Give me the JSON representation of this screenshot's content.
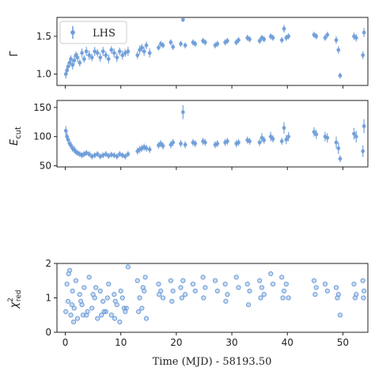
{
  "chart_data": [
    {
      "type": "scatter",
      "panel": "gamma",
      "ylabel_main": "Γ",
      "ylabel_sub": "",
      "yticks": [
        1.0,
        1.5
      ],
      "ylim": [
        0.85,
        1.75
      ],
      "xlim": [
        -1.5,
        54.5
      ],
      "legend": {
        "position": "top-left",
        "label": "LHS"
      },
      "errorbars": true,
      "color": "#6b9bd8",
      "values_note": "",
      "x": [
        0.1,
        0.3,
        0.5,
        0.8,
        1.0,
        1.3,
        1.6,
        1.9,
        2.2,
        2.6,
        3.0,
        3.4,
        3.8,
        4.3,
        4.8,
        5.3,
        5.8,
        6.3,
        6.8,
        7.3,
        7.8,
        8.3,
        8.8,
        9.3,
        9.8,
        10.3,
        10.8,
        11.3,
        13.0,
        13.4,
        13.8,
        14.2,
        14.6,
        15.2,
        16.8,
        17.2,
        17.6,
        19.0,
        19.4,
        20.8,
        21.2,
        21.6,
        23.0,
        23.4,
        24.8,
        25.2,
        27.0,
        27.4,
        28.8,
        29.2,
        30.8,
        31.2,
        32.8,
        33.2,
        35.0,
        35.4,
        35.8,
        37.0,
        37.4,
        39.0,
        39.4,
        39.8,
        40.2,
        44.8,
        45.2,
        46.8,
        47.2,
        48.8,
        49.2,
        49.5,
        52.0,
        52.4,
        53.6,
        53.8
      ],
      "y": [
        1.0,
        1.05,
        1.1,
        1.15,
        1.2,
        1.12,
        1.18,
        1.25,
        1.22,
        1.15,
        1.28,
        1.2,
        1.3,
        1.25,
        1.22,
        1.3,
        1.28,
        1.22,
        1.3,
        1.25,
        1.2,
        1.32,
        1.28,
        1.22,
        1.3,
        1.25,
        1.28,
        1.3,
        1.25,
        1.32,
        1.35,
        1.3,
        1.38,
        1.28,
        1.35,
        1.4,
        1.38,
        1.42,
        1.36,
        1.4,
        1.72,
        1.38,
        1.42,
        1.4,
        1.44,
        1.42,
        1.38,
        1.4,
        1.42,
        1.44,
        1.42,
        1.45,
        1.48,
        1.46,
        1.44,
        1.48,
        1.46,
        1.5,
        1.48,
        1.45,
        1.6,
        1.48,
        1.5,
        1.52,
        1.5,
        1.48,
        1.52,
        1.45,
        1.32,
        0.98,
        1.5,
        1.48,
        1.25,
        1.55
      ],
      "err": [
        0.06,
        0.05,
        0.06,
        0.06,
        0.05,
        0.06,
        0.06,
        0.05,
        0.06,
        0.05,
        0.06,
        0.05,
        0.06,
        0.06,
        0.05,
        0.06,
        0.05,
        0.06,
        0.06,
        0.05,
        0.06,
        0.05,
        0.06,
        0.06,
        0.05,
        0.06,
        0.05,
        0.06,
        0.05,
        0.06,
        0.05,
        0.06,
        0.05,
        0.06,
        0.04,
        0.04,
        0.04,
        0.04,
        0.04,
        0.04,
        0.03,
        0.04,
        0.04,
        0.04,
        0.04,
        0.04,
        0.04,
        0.04,
        0.04,
        0.04,
        0.04,
        0.04,
        0.04,
        0.04,
        0.04,
        0.04,
        0.04,
        0.04,
        0.04,
        0.04,
        0.05,
        0.04,
        0.04,
        0.04,
        0.04,
        0.04,
        0.04,
        0.05,
        0.05,
        0.04,
        0.05,
        0.05,
        0.05,
        0.06
      ]
    },
    {
      "type": "scatter",
      "panel": "ecut",
      "ylabel_main": "E",
      "ylabel_sub": "cut",
      "yticks": [
        50,
        100,
        150
      ],
      "ylim": [
        48,
        162
      ],
      "xlim": [
        -1.5,
        54.5
      ],
      "errorbars": true,
      "color": "#6b9bd8",
      "x": [
        0.1,
        0.3,
        0.5,
        0.8,
        1.0,
        1.3,
        1.6,
        1.9,
        2.2,
        2.6,
        3.0,
        3.4,
        3.8,
        4.3,
        4.8,
        5.3,
        5.8,
        6.3,
        6.8,
        7.3,
        7.8,
        8.3,
        8.8,
        9.3,
        9.8,
        10.3,
        10.8,
        11.3,
        13.0,
        13.4,
        13.8,
        14.2,
        14.6,
        15.2,
        16.8,
        17.2,
        17.6,
        19.0,
        19.4,
        20.8,
        21.2,
        21.6,
        23.0,
        23.4,
        24.8,
        25.2,
        27.0,
        27.4,
        28.8,
        29.2,
        30.8,
        31.2,
        32.8,
        33.2,
        35.0,
        35.4,
        35.8,
        37.0,
        37.4,
        39.0,
        39.4,
        39.8,
        40.2,
        44.8,
        45.2,
        46.8,
        47.2,
        48.8,
        49.2,
        49.5,
        52.0,
        52.4,
        53.6,
        53.8
      ],
      "y": [
        110,
        100,
        95,
        88,
        85,
        80,
        78,
        74,
        72,
        70,
        68,
        70,
        72,
        70,
        66,
        68,
        70,
        66,
        68,
        70,
        67,
        69,
        68,
        66,
        70,
        68,
        66,
        70,
        75,
        78,
        80,
        82,
        80,
        78,
        85,
        88,
        84,
        86,
        90,
        88,
        142,
        86,
        90,
        88,
        92,
        90,
        86,
        88,
        90,
        92,
        88,
        90,
        94,
        92,
        90,
        98,
        94,
        100,
        96,
        92,
        115,
        95,
        100,
        108,
        104,
        100,
        98,
        90,
        80,
        62,
        105,
        100,
        75,
        118
      ],
      "err": [
        8,
        7,
        7,
        6,
        6,
        6,
        6,
        5,
        5,
        5,
        5,
        5,
        5,
        5,
        5,
        5,
        5,
        5,
        5,
        5,
        5,
        5,
        5,
        5,
        5,
        5,
        5,
        5,
        6,
        6,
        6,
        6,
        6,
        6,
        6,
        6,
        6,
        6,
        6,
        6,
        12,
        6,
        6,
        6,
        6,
        6,
        6,
        6,
        6,
        6,
        6,
        6,
        6,
        6,
        6,
        8,
        6,
        8,
        6,
        6,
        10,
        8,
        8,
        8,
        8,
        8,
        8,
        10,
        10,
        6,
        10,
        10,
        10,
        12
      ]
    },
    {
      "type": "scatter",
      "panel": "chi2",
      "ylabel_main": "χ",
      "ylabel_sup": "2",
      "ylabel_sub": "red",
      "yticks": [
        0,
        1,
        2
      ],
      "ylim": [
        0,
        2
      ],
      "xlim": [
        -1.5,
        54.5
      ],
      "xticks": [
        0,
        10,
        20,
        30,
        40,
        50
      ],
      "xlabel": "Time (MJD) - 58193.50",
      "errorbars": false,
      "color": "#6b9bd8",
      "x": [
        0.1,
        0.3,
        0.5,
        0.8,
        1.0,
        1.3,
        1.6,
        1.9,
        2.2,
        2.6,
        3.0,
        3.4,
        3.8,
        4.3,
        4.8,
        5.3,
        5.8,
        6.3,
        6.8,
        7.3,
        7.8,
        8.3,
        8.8,
        9.3,
        9.8,
        10.3,
        10.8,
        11.3,
        0.6,
        1.5,
        2.8,
        4.0,
        5.5,
        6.5,
        7.6,
        8.9,
        10.0,
        11.0,
        1.2,
        3.2,
        5.0,
        7.0,
        9.0,
        10.6,
        13.0,
        13.4,
        13.8,
        14.2,
        14.6,
        13.2,
        14.0,
        14.4,
        16.8,
        17.2,
        17.6,
        19.0,
        19.4,
        20.8,
        21.2,
        21.6,
        23.0,
        23.4,
        24.8,
        25.2,
        27.0,
        27.4,
        28.8,
        29.2,
        30.8,
        31.2,
        32.8,
        33.2,
        35.0,
        35.4,
        35.8,
        37.0,
        37.4,
        39.0,
        39.4,
        39.8,
        40.2,
        44.8,
        45.2,
        46.8,
        47.2,
        48.8,
        49.2,
        49.5,
        52.0,
        52.4,
        53.6,
        53.8,
        16.9,
        19.2,
        21.0,
        24.9,
        28.9,
        33.0,
        35.2,
        39.2,
        45.0,
        49.0,
        52.2,
        53.7
      ],
      "y": [
        0.6,
        1.4,
        0.9,
        1.8,
        0.5,
        1.2,
        0.7,
        1.5,
        0.4,
        1.1,
        0.8,
        1.3,
        0.5,
        1.6,
        0.7,
        1.0,
        0.4,
        1.2,
        0.9,
        0.6,
        1.4,
        0.5,
        1.1,
        0.8,
        0.3,
        1.0,
        0.6,
        1.9,
        1.7,
        0.3,
        0.9,
        0.6,
        1.3,
        0.5,
        1.0,
        0.4,
        1.2,
        0.7,
        0.8,
        0.5,
        1.1,
        0.6,
        0.9,
        0.7,
        1.5,
        1.0,
        0.7,
        1.2,
        0.4,
        0.6,
        1.3,
        1.6,
        1.4,
        1.2,
        1.0,
        1.5,
        1.2,
        1.3,
        1.5,
        1.1,
        1.4,
        1.2,
        1.6,
        1.3,
        1.5,
        1.2,
        1.4,
        1.1,
        1.6,
        1.3,
        1.4,
        1.2,
        1.5,
        1.3,
        1.1,
        1.7,
        1.4,
        1.6,
        1.2,
        1.4,
        1.0,
        1.5,
        1.3,
        1.4,
        1.2,
        1.3,
        1.1,
        0.5,
        1.4,
        1.1,
        1.5,
        1.2,
        1.1,
        0.9,
        1.0,
        1.0,
        0.9,
        0.8,
        1.0,
        1.0,
        1.1,
        1.0,
        1.0,
        1.0
      ],
      "err": []
    }
  ]
}
